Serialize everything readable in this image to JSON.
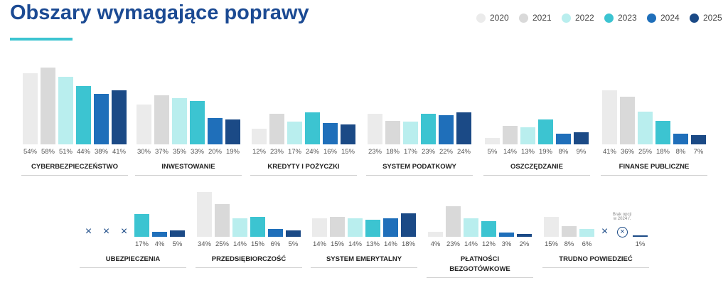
{
  "title": "Obszary wymagające poprawy",
  "legend": {
    "labels": [
      "2020",
      "2021",
      "2022",
      "2023",
      "2024",
      "2025"
    ],
    "colors": [
      "#ebebeb",
      "#d9d9d9",
      "#b9eeee",
      "#3cc4d1",
      "#1f6fba",
      "#1b4a86"
    ]
  },
  "chart_data": [
    {
      "type": "bar",
      "title": "CYBERBEZPIECZEŃSTWO",
      "values": [
        54,
        58,
        51,
        44,
        38,
        41
      ],
      "value_labels": [
        "54%",
        "58%",
        "51%",
        "44%",
        "38%",
        "41%"
      ]
    },
    {
      "type": "bar",
      "title": "INWESTOWANIE",
      "values": [
        30,
        37,
        35,
        33,
        20,
        19
      ],
      "value_labels": [
        "30%",
        "37%",
        "35%",
        "33%",
        "20%",
        "19%"
      ]
    },
    {
      "type": "bar",
      "title": "KREDYTY I POŻYCZKI",
      "values": [
        12,
        23,
        17,
        24,
        16,
        15
      ],
      "value_labels": [
        "12%",
        "23%",
        "17%",
        "24%",
        "16%",
        "15%"
      ]
    },
    {
      "type": "bar",
      "title": "SYSTEM PODATKOWY",
      "values": [
        23,
        18,
        17,
        23,
        22,
        24
      ],
      "value_labels": [
        "23%",
        "18%",
        "17%",
        "23%",
        "22%",
        "24%"
      ]
    },
    {
      "type": "bar",
      "title": "OSZCZĘDZANIE",
      "values": [
        5,
        14,
        13,
        19,
        8,
        9
      ],
      "value_labels": [
        "5%",
        "14%",
        "13%",
        "19%",
        "8%",
        "9%"
      ]
    },
    {
      "type": "bar",
      "title": "FINANSE PUBLICZNE",
      "values": [
        41,
        36,
        25,
        18,
        8,
        7
      ],
      "value_labels": [
        "41%",
        "36%",
        "25%",
        "18%",
        "8%",
        "7%"
      ]
    },
    {
      "type": "bar",
      "title": "UBEZPIECZENIA",
      "values": [
        null,
        null,
        null,
        17,
        4,
        5
      ],
      "value_labels": [
        null,
        null,
        null,
        "17%",
        "4%",
        "5%"
      ]
    },
    {
      "type": "bar",
      "title": "PRZEDSIĘBIORCZOŚĆ",
      "values": [
        34,
        25,
        14,
        15,
        6,
        5
      ],
      "value_labels": [
        "34%",
        "25%",
        "14%",
        "15%",
        "6%",
        "5%"
      ]
    },
    {
      "type": "bar",
      "title": "SYSTEM EMERYTALNY",
      "values": [
        14,
        15,
        14,
        13,
        14,
        18
      ],
      "value_labels": [
        "14%",
        "15%",
        "14%",
        "13%",
        "14%",
        "18%"
      ]
    },
    {
      "type": "bar",
      "title": "PŁATNOŚCI\nBEZGOTÓWKOWE",
      "values": [
        4,
        23,
        14,
        12,
        3,
        2
      ],
      "value_labels": [
        "4%",
        "23%",
        "14%",
        "12%",
        "3%",
        "2%"
      ]
    },
    {
      "type": "bar",
      "title": "TRUDNO POWIEDZIEĆ",
      "values": [
        15,
        8,
        6,
        null,
        null,
        1
      ],
      "value_labels": [
        "15%",
        "8%",
        "6%",
        null,
        null,
        "1%"
      ],
      "annotation": "Brak opcji\nw 2024 r."
    }
  ]
}
